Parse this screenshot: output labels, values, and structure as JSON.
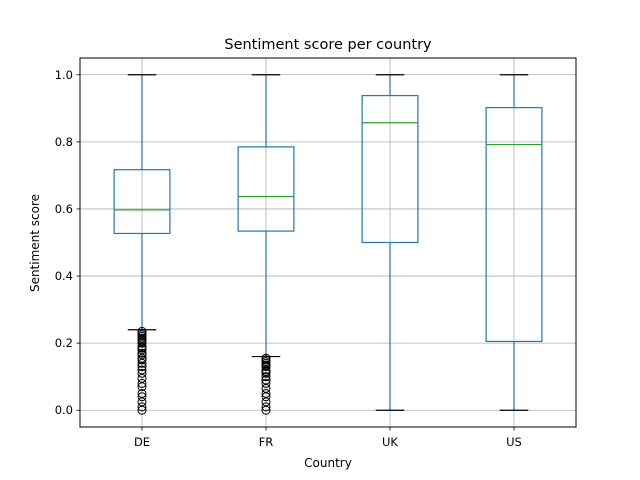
{
  "chart_data": {
    "type": "boxplot",
    "title": "Sentiment score per country",
    "xlabel": "Country",
    "ylabel": "Sentiment score",
    "ylim": [
      -0.05,
      1.05
    ],
    "yticks": [
      0.0,
      0.2,
      0.4,
      0.6,
      0.8,
      1.0
    ],
    "ytick_labels": [
      "0.0",
      "0.2",
      "0.4",
      "0.6",
      "0.8",
      "1.0"
    ],
    "grid": true,
    "categories": [
      "DE",
      "FR",
      "UK",
      "US"
    ],
    "boxes": [
      {
        "whisker_low": 0.24,
        "q1": 0.527,
        "median": 0.597,
        "q3": 0.717,
        "whisker_high": 1.0,
        "outliers": [
          0.0,
          0.01,
          0.025,
          0.04,
          0.05,
          0.07,
          0.08,
          0.095,
          0.11,
          0.12,
          0.13,
          0.14,
          0.15,
          0.155,
          0.165,
          0.17,
          0.18,
          0.185,
          0.19,
          0.2,
          0.205,
          0.21,
          0.215,
          0.22,
          0.225,
          0.23,
          0.235
        ]
      },
      {
        "whisker_low": 0.16,
        "q1": 0.534,
        "median": 0.637,
        "q3": 0.785,
        "whisker_high": 1.0,
        "outliers": [
          0.0,
          0.01,
          0.025,
          0.04,
          0.05,
          0.065,
          0.08,
          0.09,
          0.1,
          0.11,
          0.115,
          0.12,
          0.13,
          0.135,
          0.14,
          0.145,
          0.15,
          0.155
        ]
      },
      {
        "whisker_low": 0.0,
        "q1": 0.5,
        "median": 0.857,
        "q3": 0.938,
        "whisker_high": 1.0,
        "outliers": []
      },
      {
        "whisker_low": 0.0,
        "q1": 0.205,
        "median": 0.792,
        "q3": 0.902,
        "whisker_high": 1.0,
        "outliers": []
      }
    ],
    "colors": {
      "box": "#1f77b4",
      "median": "#2ca02c",
      "grid": "#b0b0b0",
      "outlier": "#000000"
    }
  }
}
